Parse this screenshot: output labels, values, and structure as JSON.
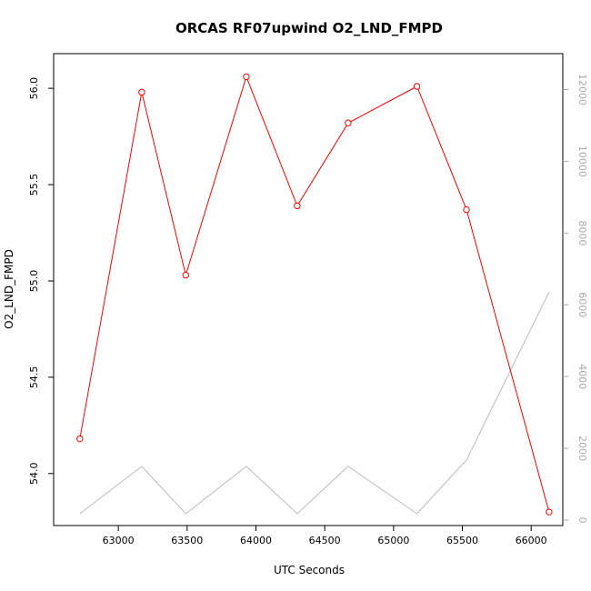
{
  "chart_data": {
    "type": "line",
    "title": "ORCAS RF07upwind O2_LND_FMPD",
    "xlabel": "UTC Seconds",
    "ylabel": "O2_LND_FMPD",
    "xlim": [
      62530,
      66230
    ],
    "ylim": [
      53.73,
      56.18
    ],
    "y2lim": [
      -150,
      13000
    ],
    "x_ticks": [
      63000,
      63500,
      64000,
      64500,
      65000,
      65500,
      66000
    ],
    "y_ticks": [
      54.0,
      54.5,
      55.0,
      55.5,
      56.0
    ],
    "y_tick_labels": [
      "54.0",
      "54.5",
      "55.0",
      "55.5",
      "56.0"
    ],
    "y2_ticks": [
      0,
      2000,
      4000,
      6000,
      8000,
      10000,
      12000
    ],
    "series": [
      {
        "axis": "left",
        "color": "#ff0000",
        "markers": "open-circle",
        "x": [
          62720,
          63170,
          63490,
          63930,
          64300,
          64670,
          65170,
          65530,
          66130
        ],
        "y": [
          54.18,
          55.98,
          55.03,
          56.06,
          55.39,
          55.82,
          56.01,
          55.37,
          53.8
        ]
      },
      {
        "axis": "right",
        "color": "#bbbbbb",
        "markers": "none",
        "x": [
          62720,
          63170,
          63490,
          63930,
          64300,
          64670,
          65170,
          65530,
          66130
        ],
        "y": [
          180,
          1500,
          180,
          1500,
          180,
          1500,
          180,
          1680,
          6360
        ]
      }
    ]
  }
}
